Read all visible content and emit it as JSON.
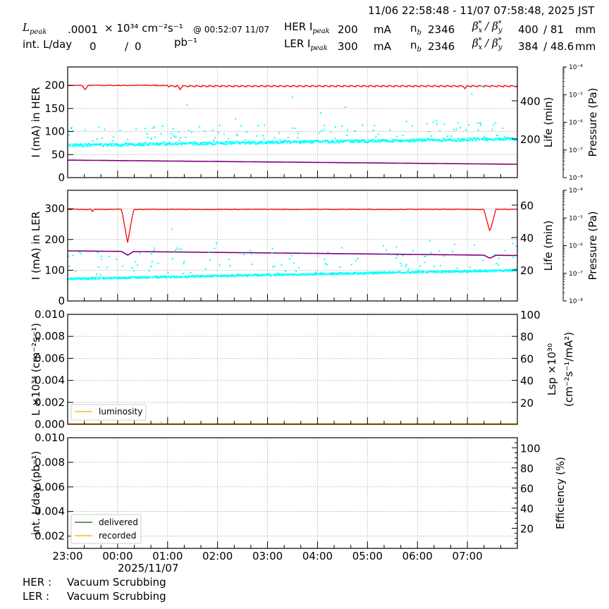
{
  "header": {
    "time_range": "11/06 22:58:48 - 11/07 07:58:48, 2025 JST",
    "lpeak_label": "L",
    "lpeak_sub": "peak",
    "lpeak_value": ".0001",
    "lpeak_unit": "× 10³⁴ cm⁻²s⁻¹",
    "lpeak_at": "@ 00:52:07 11/07",
    "intl_label": "int. L/day",
    "intl_delivered": "0",
    "intl_sep": "/",
    "intl_recorded": "0",
    "intl_unit": "pb⁻¹",
    "her": {
      "label": "HER I",
      "sub": "peak",
      "value": "200",
      "unit": "mA",
      "nb_label": "n",
      "nb_sub": "b",
      "nb": "2346",
      "beta_label": "βx* / βy*",
      "beta_x": "400",
      "beta_y": "/ 81",
      "beta_unit": "mm"
    },
    "ler": {
      "label": "LER I",
      "sub": "peak",
      "value": "300",
      "unit": "mA",
      "nb_label": "n",
      "nb_sub": "b",
      "nb": "2346",
      "beta_label": "βx* / βy*",
      "beta_x": "384",
      "beta_y": "/ 48.6",
      "beta_unit": "mm"
    }
  },
  "footer": {
    "date_label": "2025/11/07",
    "her_status_label": "HER :",
    "her_status": "Vacuum Scrubbing",
    "ler_status_label": "LER :",
    "ler_status": "Vacuum Scrubbing"
  },
  "colors": {
    "current": "#ff0000",
    "life": "#00ffff",
    "pressure": "#800080",
    "luminosity": "#ffb32e",
    "delivered": "#2e7d32",
    "recorded": "#ffb32e",
    "grid": "#b0b0b0"
  },
  "chart_data": [
    {
      "type": "line",
      "title": "HER",
      "xlabel": "",
      "x_ticks": [
        "23:00",
        "00:00",
        "01:00",
        "02:00",
        "03:00",
        "04:00",
        "05:00",
        "06:00",
        "07:00"
      ],
      "ylabel": "I (mA) in HER",
      "ylim": [
        0,
        240
      ],
      "y_ticks": [
        0,
        50,
        100,
        150,
        200
      ],
      "y2label": "Life (min)",
      "y2_ticks": [
        200,
        400
      ],
      "y3label": "Pressure (Pa)",
      "y3_ticks": [
        "10⁻⁸",
        "10⁻⁷",
        "10⁻⁶",
        "10⁻⁵",
        "10⁻⁴"
      ],
      "grid": true,
      "series": [
        {
          "name": "current",
          "color": "#ff0000",
          "approx_value": 200,
          "notes": "sawtooth top-up ~195-200 mA, dips to ~190 at 00:20 and 02:10 and 07:35"
        },
        {
          "name": "life",
          "color": "#00ffff",
          "approx_value_left_axis": "70-85",
          "notes": "scatter with outliers up to ~235"
        },
        {
          "name": "pressure",
          "color": "#800080",
          "approx_value_left_axis": "38 decreasing to 29"
        }
      ]
    },
    {
      "type": "line",
      "title": "LER",
      "x_ticks": [
        "23:00",
        "00:00",
        "01:00",
        "02:00",
        "03:00",
        "04:00",
        "05:00",
        "06:00",
        "07:00"
      ],
      "ylabel": "I (mA) in LER",
      "ylim": [
        0,
        360
      ],
      "y_ticks": [
        0,
        100,
        200,
        300
      ],
      "y2label": "Life (min)",
      "y2_ticks": [
        20,
        40,
        60
      ],
      "y3label": "Pressure (Pa)",
      "y3_ticks": [
        "10⁻⁸",
        "10⁻⁷",
        "10⁻⁶",
        "10⁻⁵",
        "10⁻⁴"
      ],
      "grid": true,
      "series": [
        {
          "name": "current",
          "color": "#ff0000",
          "approx_value": 298,
          "notes": "dips to ~190 at 00:20 and ~225 at 07:25"
        },
        {
          "name": "life",
          "color": "#00ffff",
          "approx_value_left_axis": "72 rising to 100",
          "notes": "scatter with outliers"
        },
        {
          "name": "pressure",
          "color": "#800080",
          "approx_value_left_axis": "163 decreasing to 148"
        }
      ]
    },
    {
      "type": "line",
      "ylabel": "L ×10³⁴ (cm⁻²s⁻¹)",
      "ylim": [
        0,
        0.01
      ],
      "y_ticks": [
        "0.000",
        "0.002",
        "0.004",
        "0.006",
        "0.008",
        "0.010"
      ],
      "y2label": "Lsp ×10³⁰ (cm⁻²s⁻¹/mA²)",
      "y2_ticks": [
        20,
        40,
        60,
        80,
        100
      ],
      "legend": [
        "luminosity"
      ],
      "legend_position": "lower left",
      "grid": true,
      "series": [
        {
          "name": "luminosity",
          "color": "#ffb32e",
          "values": "≈0 throughout, tiny spike near 00:52"
        }
      ]
    },
    {
      "type": "line",
      "ylabel": "int. L/day (pb⁻¹)",
      "ylim": [
        0.001,
        0.01
      ],
      "y_ticks": [
        "0.002",
        "0.004",
        "0.006",
        "0.008",
        "0.010"
      ],
      "y2label": "Efficiency (%)",
      "y2_ticks": [
        20,
        40,
        60,
        80,
        100
      ],
      "legend": [
        "delivered",
        "recorded"
      ],
      "legend_position": "lower left",
      "grid": true,
      "series": [
        {
          "name": "delivered",
          "color": "#2e7d32",
          "values": []
        },
        {
          "name": "recorded",
          "color": "#ffb32e",
          "values": []
        }
      ]
    }
  ]
}
